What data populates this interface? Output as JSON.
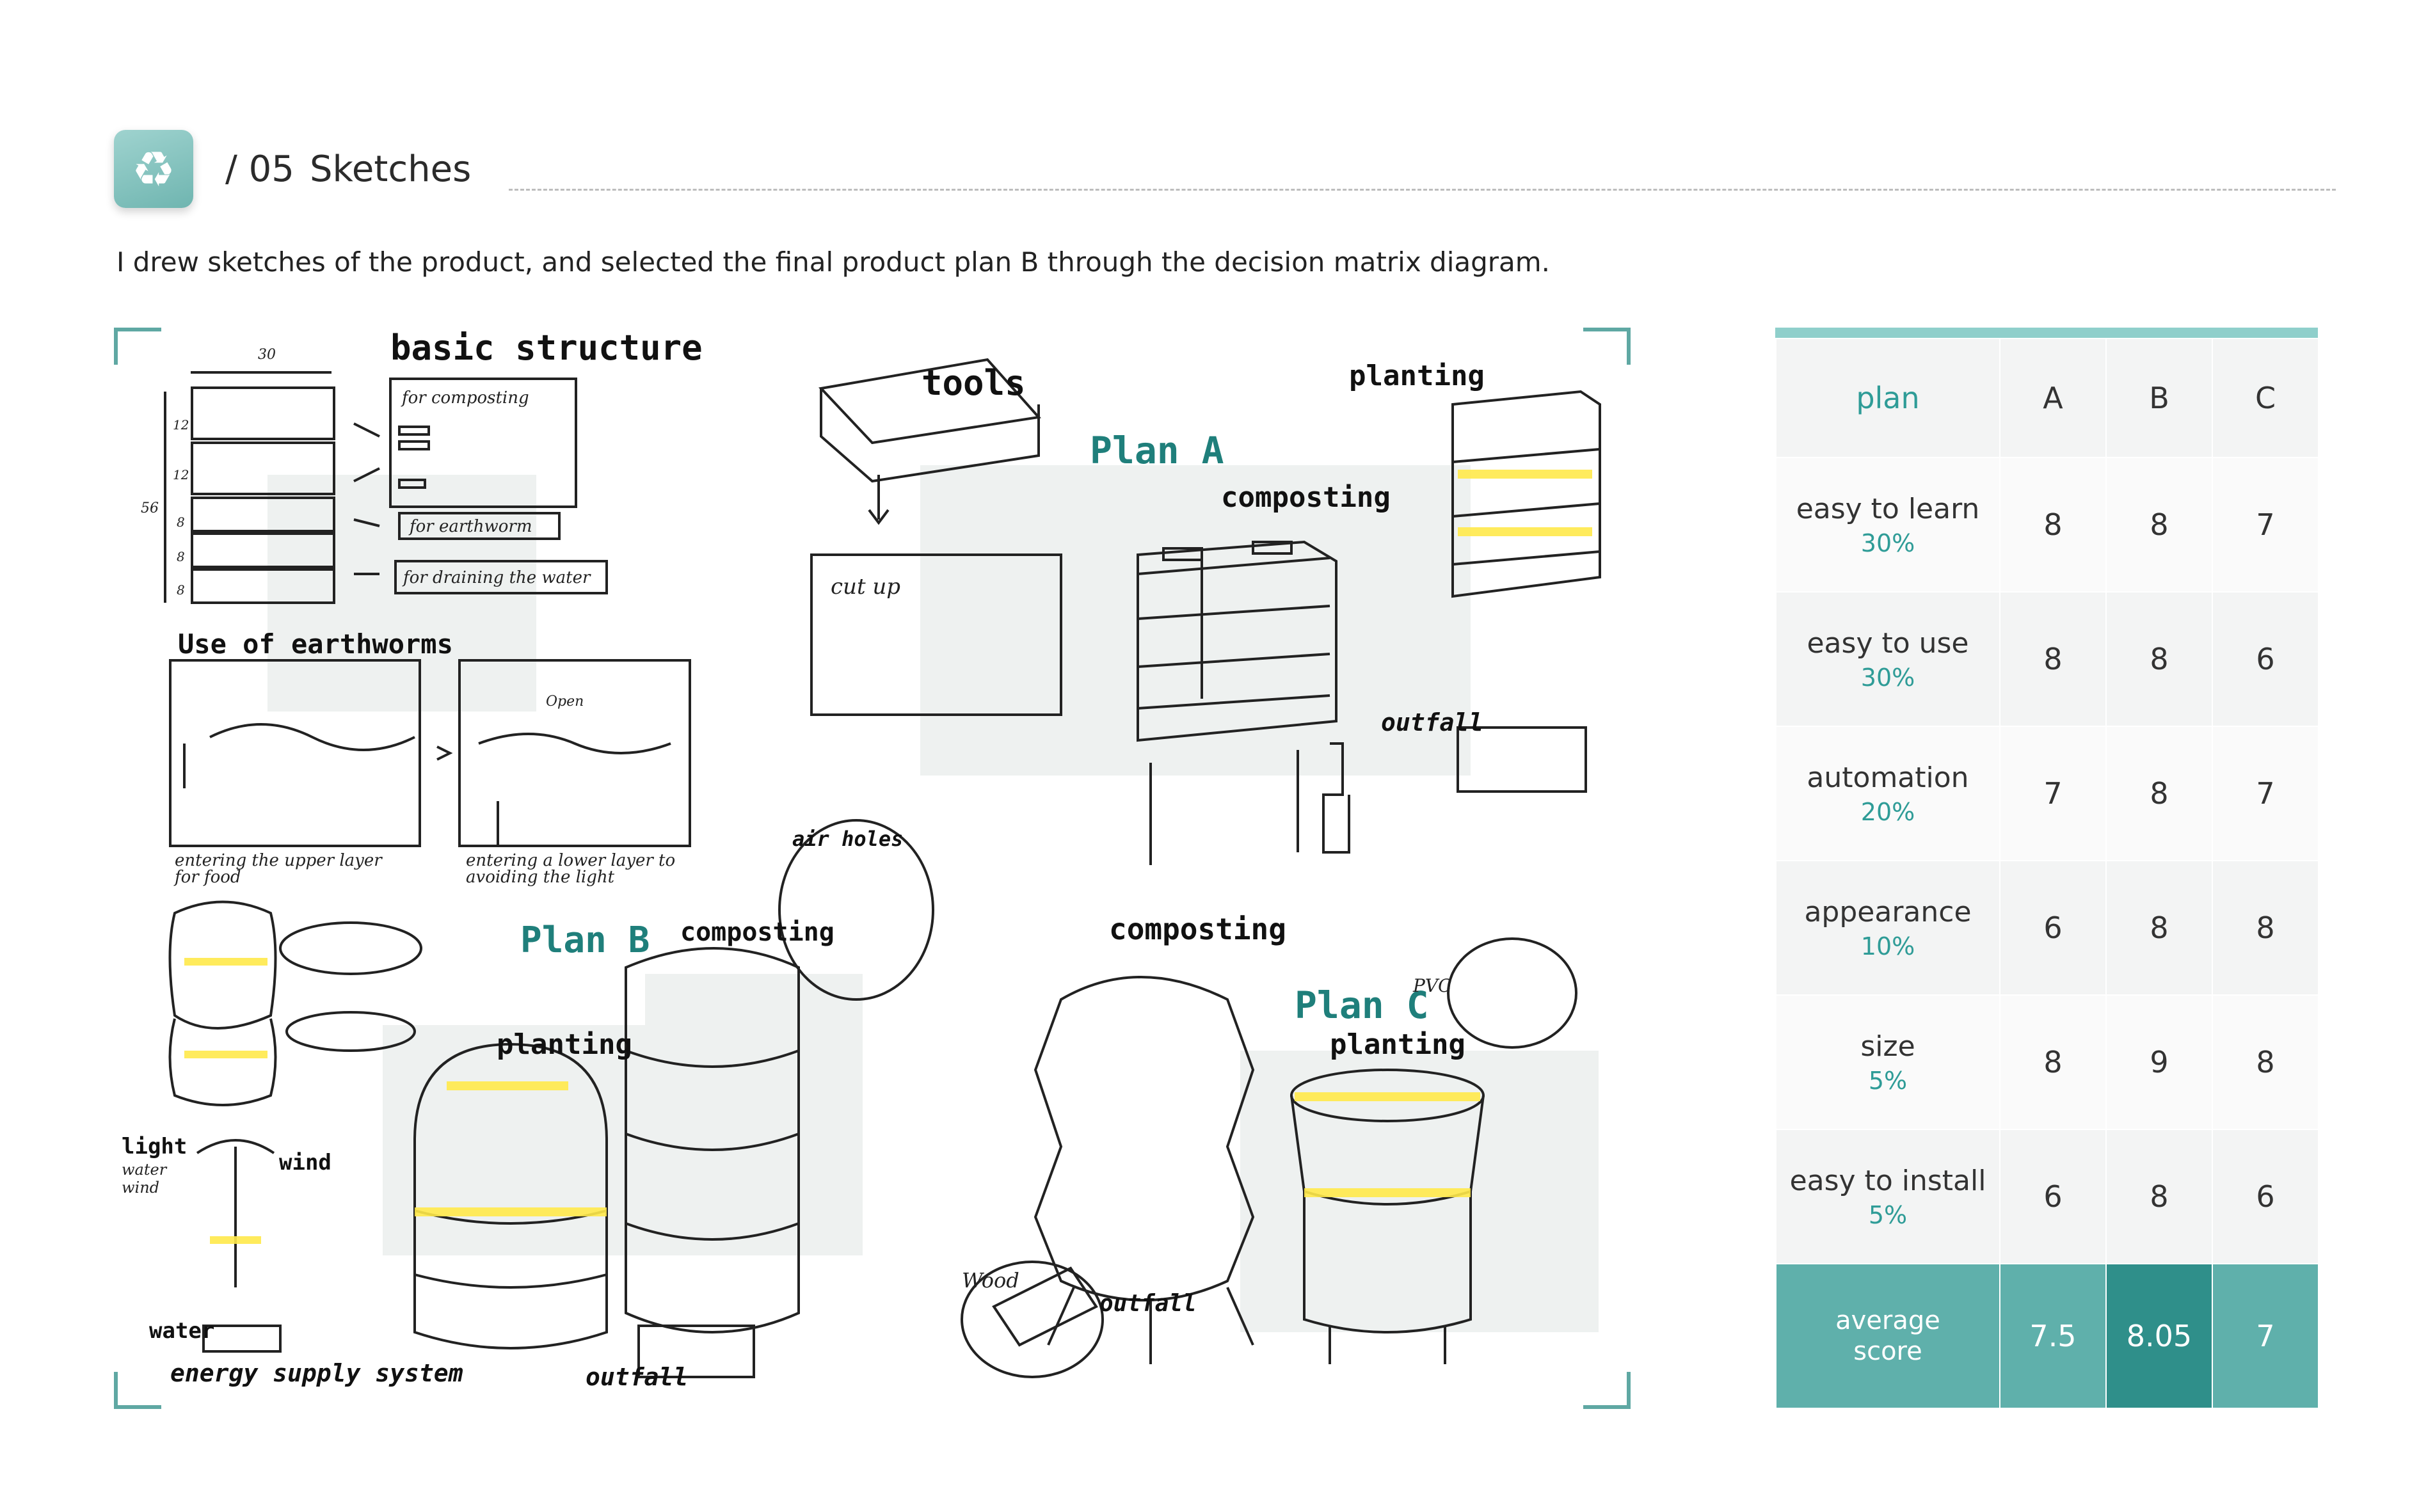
{
  "header": {
    "icon": "recycle-icon",
    "slash": "/ 05",
    "title": "Sketches"
  },
  "intro": "I drew sketches of the product, and selected the final product plan B through the decision matrix diagram.",
  "sketch": {
    "labels": {
      "basic_structure": "basic structure",
      "for_composting": "for composting",
      "for_earthworm": "for earthworm",
      "for_draining": "for draining the water",
      "use_of_earthworms": "Use of earthworms",
      "upper_layer": "entering the upper layer for food",
      "lower_layer": "entering a lower layer to avoiding the light",
      "open": "Open",
      "tools": "tools",
      "cut_up": "cut up",
      "plan_a": "Plan A",
      "composting_a": "composting",
      "planting_a": "planting",
      "outfall_a": "outfall",
      "air_holes": "air holes",
      "plan_b": "Plan B",
      "composting_b": "composting",
      "planting_b": "planting",
      "outfall_b": "outfall",
      "light": "light",
      "water": "water",
      "wind_small": "wind",
      "wind": "wind",
      "water_bottom": "water",
      "energy": "energy supply system",
      "composting_c": "composting",
      "plan_c": "Plan C",
      "pvc": "PVC",
      "planting_c": "planting",
      "wood": "Wood",
      "outfall_c": "outfall",
      "dim_30": "30",
      "dim_56": "56",
      "dim_12a": "12",
      "dim_12b": "12",
      "dim_8a": "8",
      "dim_8b": "8",
      "dim_8c": "8"
    }
  },
  "matrix": {
    "header": [
      "plan",
      "A",
      "B",
      "C"
    ],
    "rows": [
      {
        "criterion": "easy to learn",
        "weight": "30%",
        "A": "8",
        "B": "8",
        "C": "7"
      },
      {
        "criterion": "easy to use",
        "weight": "30%",
        "A": "8",
        "B": "8",
        "C": "6"
      },
      {
        "criterion": "automation",
        "weight": "20%",
        "A": "7",
        "B": "8",
        "C": "7"
      },
      {
        "criterion": "appearance",
        "weight": "10%",
        "A": "6",
        "B": "8",
        "C": "8"
      },
      {
        "criterion": "size",
        "weight": "5%",
        "A": "8",
        "B": "9",
        "C": "8"
      },
      {
        "criterion": "easy to install",
        "weight": "5%",
        "A": "6",
        "B": "8",
        "C": "6"
      }
    ],
    "average": {
      "label_1": "average",
      "label_2": "score",
      "A": "7.5",
      "B": "8.05",
      "C": "7"
    },
    "colors": {
      "accent": "#5fb0ab",
      "highlight": "#2f8f8a",
      "weight_text": "#2f9c97"
    }
  }
}
